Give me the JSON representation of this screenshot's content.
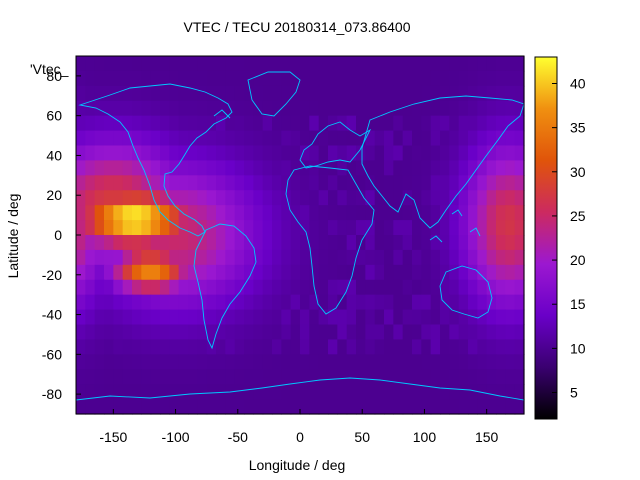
{
  "chart_data": {
    "type": "heatmap",
    "title": "VTEC / TECU 20180314_073.86400",
    "xlabel": "Longitude / deg",
    "ylabel": "Latitude / deg",
    "series_label": "'Vtec_",
    "xlim": [
      -180,
      180
    ],
    "ylim": [
      -90,
      90
    ],
    "x_ticks": [
      -150,
      -100,
      -50,
      0,
      50,
      100,
      150
    ],
    "y_ticks": [
      -80,
      -60,
      -40,
      -20,
      0,
      20,
      40,
      60,
      80
    ],
    "colorbar": {
      "range": [
        2,
        43
      ],
      "ticks": [
        5,
        10,
        15,
        20,
        25,
        30,
        35,
        40
      ],
      "palette": [
        "#000000",
        "#3a0070",
        "#6a00c8",
        "#9c18d0",
        "#cc2a60",
        "#e0540a",
        "#f09010",
        "#ffff30"
      ]
    },
    "description_sources": [
      {
        "lon": -133,
        "lat": 8,
        "value": 43,
        "spread_lon": 32,
        "spread_lat": 10
      },
      {
        "lon": -120,
        "lat": -18,
        "value": 36,
        "spread_lon": 22,
        "spread_lat": 8
      },
      {
        "lon": -150,
        "lat": 15,
        "value": 28,
        "spread_lon": 40,
        "spread_lat": 22
      },
      {
        "lon": -100,
        "lat": 0,
        "value": 25,
        "spread_lon": 45,
        "spread_lat": 25
      },
      {
        "lon": 168,
        "lat": 5,
        "value": 27,
        "spread_lon": 25,
        "spread_lat": 28
      }
    ],
    "background_value": 10
  }
}
